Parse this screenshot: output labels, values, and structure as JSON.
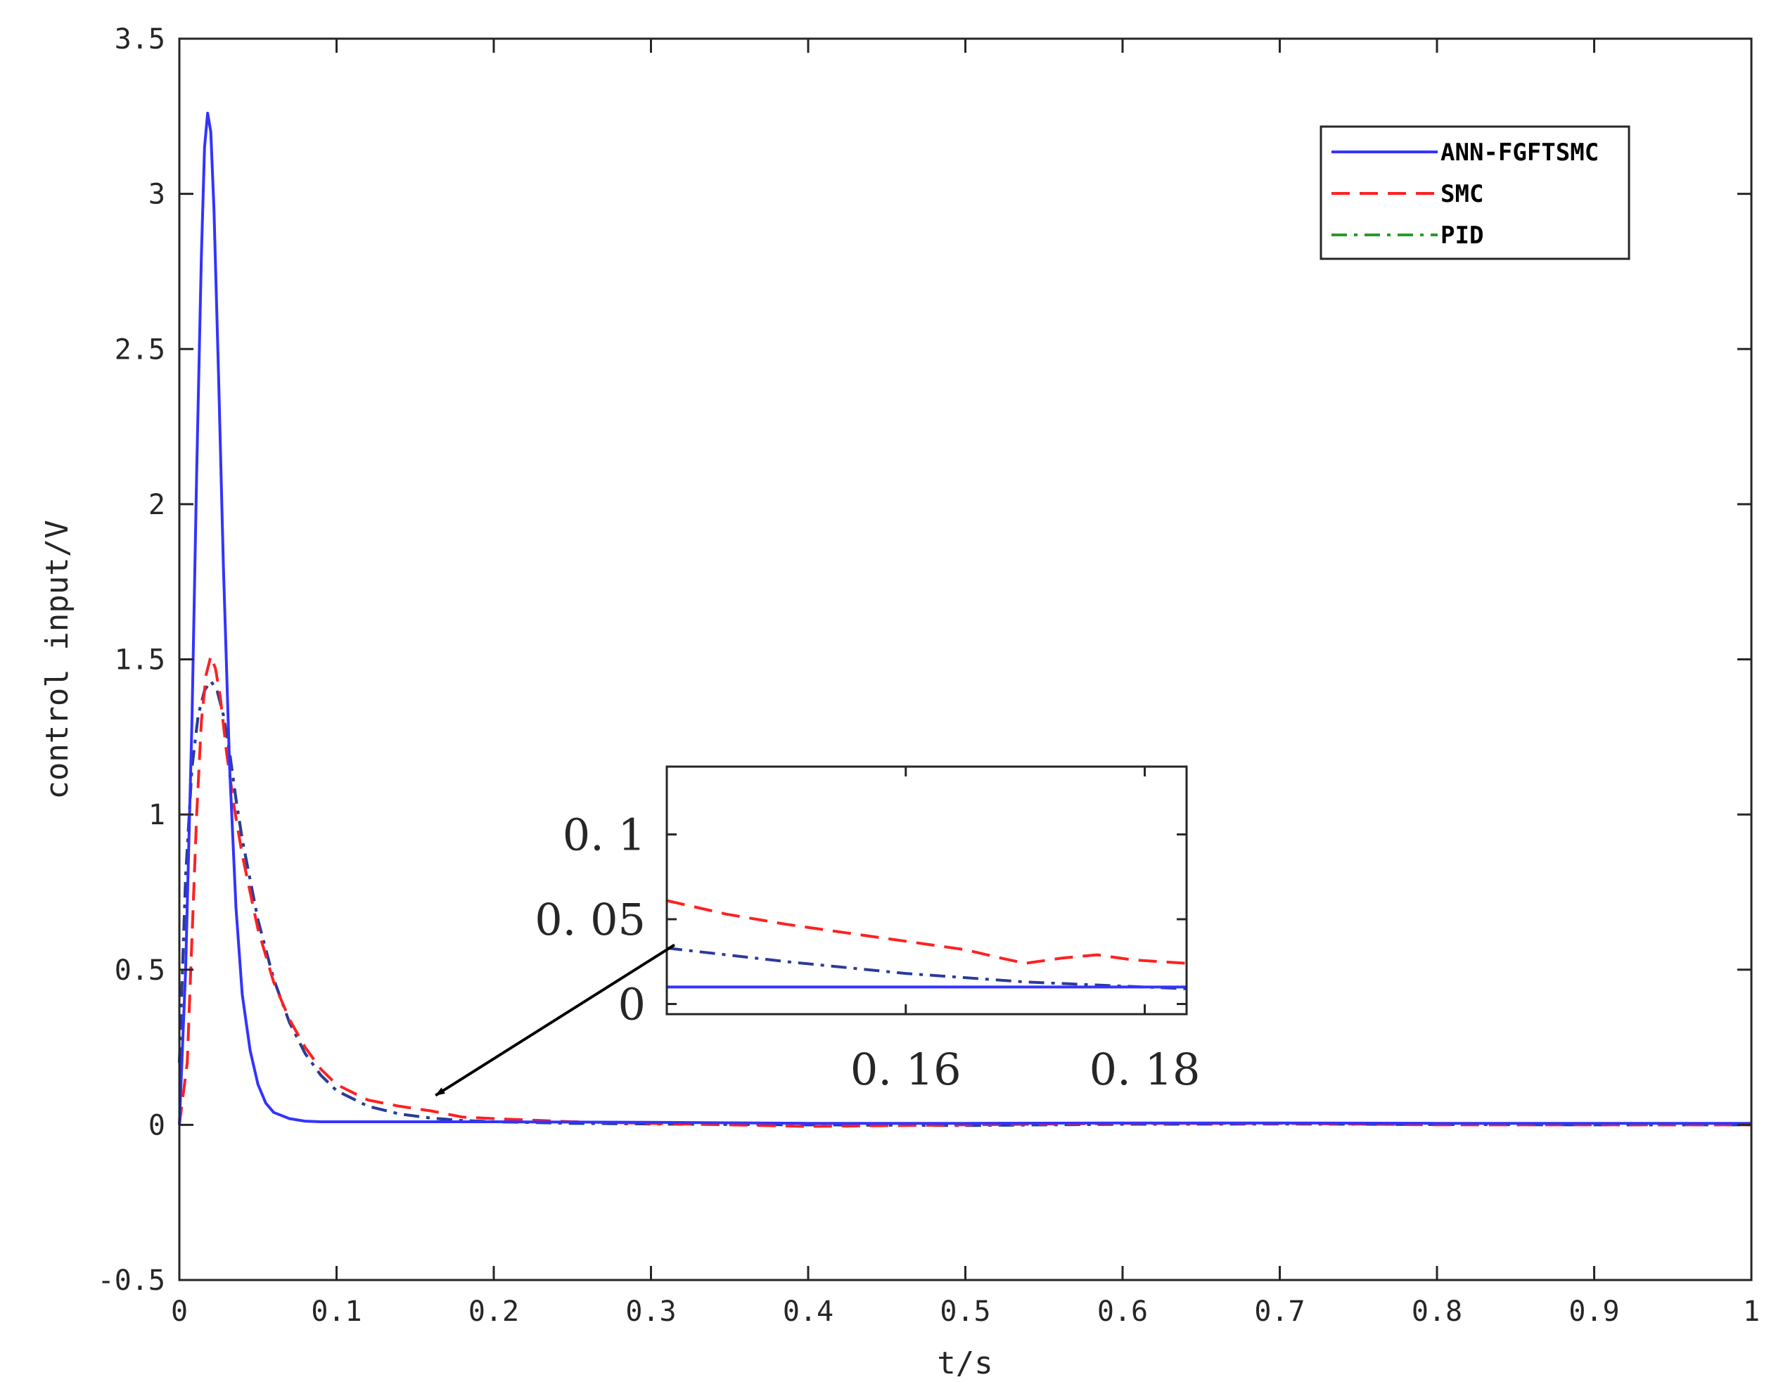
{
  "chart_data": {
    "type": "line",
    "xlabel": "t/s",
    "ylabel": "control input/V",
    "xlim": [
      0,
      1
    ],
    "ylim": [
      -0.5,
      3.5
    ],
    "xticks": [
      0,
      0.1,
      0.2,
      0.3,
      0.4,
      0.5,
      0.6,
      0.7,
      0.8,
      0.9,
      1
    ],
    "xtick_labels": [
      "0",
      "0.1",
      "0.2",
      "0.3",
      "0.4",
      "0.5",
      "0.6",
      "0.7",
      "0.8",
      "0.9",
      "1"
    ],
    "yticks": [
      -0.5,
      0,
      0.5,
      1,
      1.5,
      2,
      2.5,
      3,
      3.5
    ],
    "ytick_labels": [
      "-0.5",
      "0",
      "0.5",
      "1",
      "1.5",
      "2",
      "2.5",
      "3",
      "3.5"
    ],
    "grid": false,
    "legend_position": "top-right",
    "series": [
      {
        "name": "ANN-FGFTSMC",
        "color": "#3333ff",
        "style": "solid",
        "x": [
          0,
          0.004,
          0.008,
          0.011,
          0.014,
          0.016,
          0.018,
          0.02,
          0.022,
          0.025,
          0.028,
          0.032,
          0.036,
          0.04,
          0.045,
          0.05,
          0.055,
          0.06,
          0.07,
          0.08,
          0.09,
          0.1,
          0.12,
          0.15,
          0.2,
          0.3,
          0.4,
          0.5,
          0.6,
          0.7,
          0.8,
          0.9,
          1
        ],
        "y": [
          0,
          0.5,
          1.3,
          2.1,
          2.8,
          3.15,
          3.26,
          3.2,
          2.95,
          2.4,
          1.8,
          1.15,
          0.7,
          0.42,
          0.24,
          0.13,
          0.07,
          0.04,
          0.02,
          0.012,
          0.01,
          0.01,
          0.01,
          0.01,
          0.01,
          0.008,
          0.005,
          0.005,
          0.006,
          0.006,
          0.005,
          0.005,
          0.005
        ]
      },
      {
        "name": "SMC",
        "color": "#ff2020",
        "style": "dashed",
        "x": [
          0,
          0.005,
          0.008,
          0.011,
          0.014,
          0.017,
          0.02,
          0.023,
          0.026,
          0.03,
          0.035,
          0.04,
          0.05,
          0.06,
          0.07,
          0.08,
          0.09,
          0.1,
          0.12,
          0.14,
          0.16,
          0.18,
          0.2,
          0.25,
          0.3,
          0.4,
          0.5,
          0.6,
          0.7,
          0.8,
          0.9,
          1
        ],
        "y": [
          0,
          0.2,
          0.6,
          1.0,
          1.3,
          1.45,
          1.51,
          1.47,
          1.38,
          1.2,
          1.02,
          0.87,
          0.63,
          0.46,
          0.34,
          0.25,
          0.18,
          0.13,
          0.08,
          0.06,
          0.045,
          0.025,
          0.02,
          0.01,
          0.005,
          -0.005,
          0.0,
          0.005,
          0.005,
          0.0,
          0.0,
          0.0
        ]
      },
      {
        "name": "PID",
        "color": "#2a9a2a",
        "style": "dashdot",
        "x": [
          0,
          0.004,
          0.008,
          0.012,
          0.016,
          0.02,
          0.024,
          0.028,
          0.032,
          0.036,
          0.04,
          0.05,
          0.06,
          0.07,
          0.08,
          0.09,
          0.1,
          0.12,
          0.14,
          0.16,
          0.18,
          0.2,
          0.25,
          0.3,
          0.4,
          0.5,
          0.6,
          0.7,
          0.8,
          0.9,
          1
        ],
        "y": [
          0.2,
          0.8,
          1.15,
          1.32,
          1.4,
          1.43,
          1.4,
          1.32,
          1.2,
          1.05,
          0.92,
          0.66,
          0.47,
          0.33,
          0.23,
          0.16,
          0.11,
          0.06,
          0.035,
          0.022,
          0.014,
          0.01,
          0.005,
          0.003,
          0.0,
          -0.002,
          0.002,
          0.003,
          0.001,
          0.0,
          0.0
        ]
      },
      {
        "name": "",
        "color": "#2c3a9c",
        "style": "dashdot",
        "x": [
          0,
          0.004,
          0.008,
          0.012,
          0.016,
          0.02,
          0.024,
          0.028,
          0.032,
          0.036,
          0.04,
          0.05,
          0.06,
          0.07,
          0.08,
          0.09,
          0.1,
          0.12,
          0.14,
          0.16,
          0.18,
          0.2,
          0.25,
          0.3,
          0.4,
          0.5,
          0.6,
          0.7,
          0.8,
          0.9,
          1
        ],
        "y": [
          0.2,
          0.8,
          1.15,
          1.32,
          1.4,
          1.43,
          1.4,
          1.32,
          1.2,
          1.05,
          0.92,
          0.66,
          0.47,
          0.33,
          0.23,
          0.16,
          0.11,
          0.06,
          0.035,
          0.022,
          0.014,
          0.01,
          0.005,
          0.003,
          0.0,
          -0.002,
          0.002,
          0.003,
          0.001,
          0.0,
          0.0
        ]
      }
    ],
    "inset": {
      "xlim": [
        0.14,
        0.1835
      ],
      "ylim": [
        -0.006,
        0.14
      ],
      "xticks": [
        0.16,
        0.18
      ],
      "xtick_labels": [
        "0. 16",
        "0. 18"
      ],
      "yticks": [
        0,
        0.05,
        0.1
      ],
      "ytick_labels": [
        "0",
        "0. 05",
        "0. 1"
      ],
      "series": [
        {
          "name": "SMC",
          "color": "#ff2020",
          "style": "dashed",
          "x": [
            0.14,
            0.145,
            0.15,
            0.155,
            0.16,
            0.165,
            0.168,
            0.17,
            0.173,
            0.176,
            0.179,
            0.1835
          ],
          "y": [
            0.061,
            0.053,
            0.047,
            0.042,
            0.037,
            0.032,
            0.027,
            0.024,
            0.027,
            0.029,
            0.026,
            0.024
          ]
        },
        {
          "name": "",
          "color": "#2c3a9c",
          "style": "dashdot",
          "x": [
            0.14,
            0.15,
            0.16,
            0.17,
            0.18,
            0.1835
          ],
          "y": [
            0.033,
            0.025,
            0.018,
            0.013,
            0.01,
            0.009
          ]
        },
        {
          "name": "ANN-FGFTSMC",
          "color": "#3333ff",
          "style": "solid",
          "x": [
            0.14,
            0.1835
          ],
          "y": [
            0.01,
            0.01
          ]
        }
      ]
    },
    "annotation": {
      "arrow_from": [
        0.315,
        0.58
      ],
      "arrow_to": [
        0.163,
        0.095
      ]
    }
  }
}
